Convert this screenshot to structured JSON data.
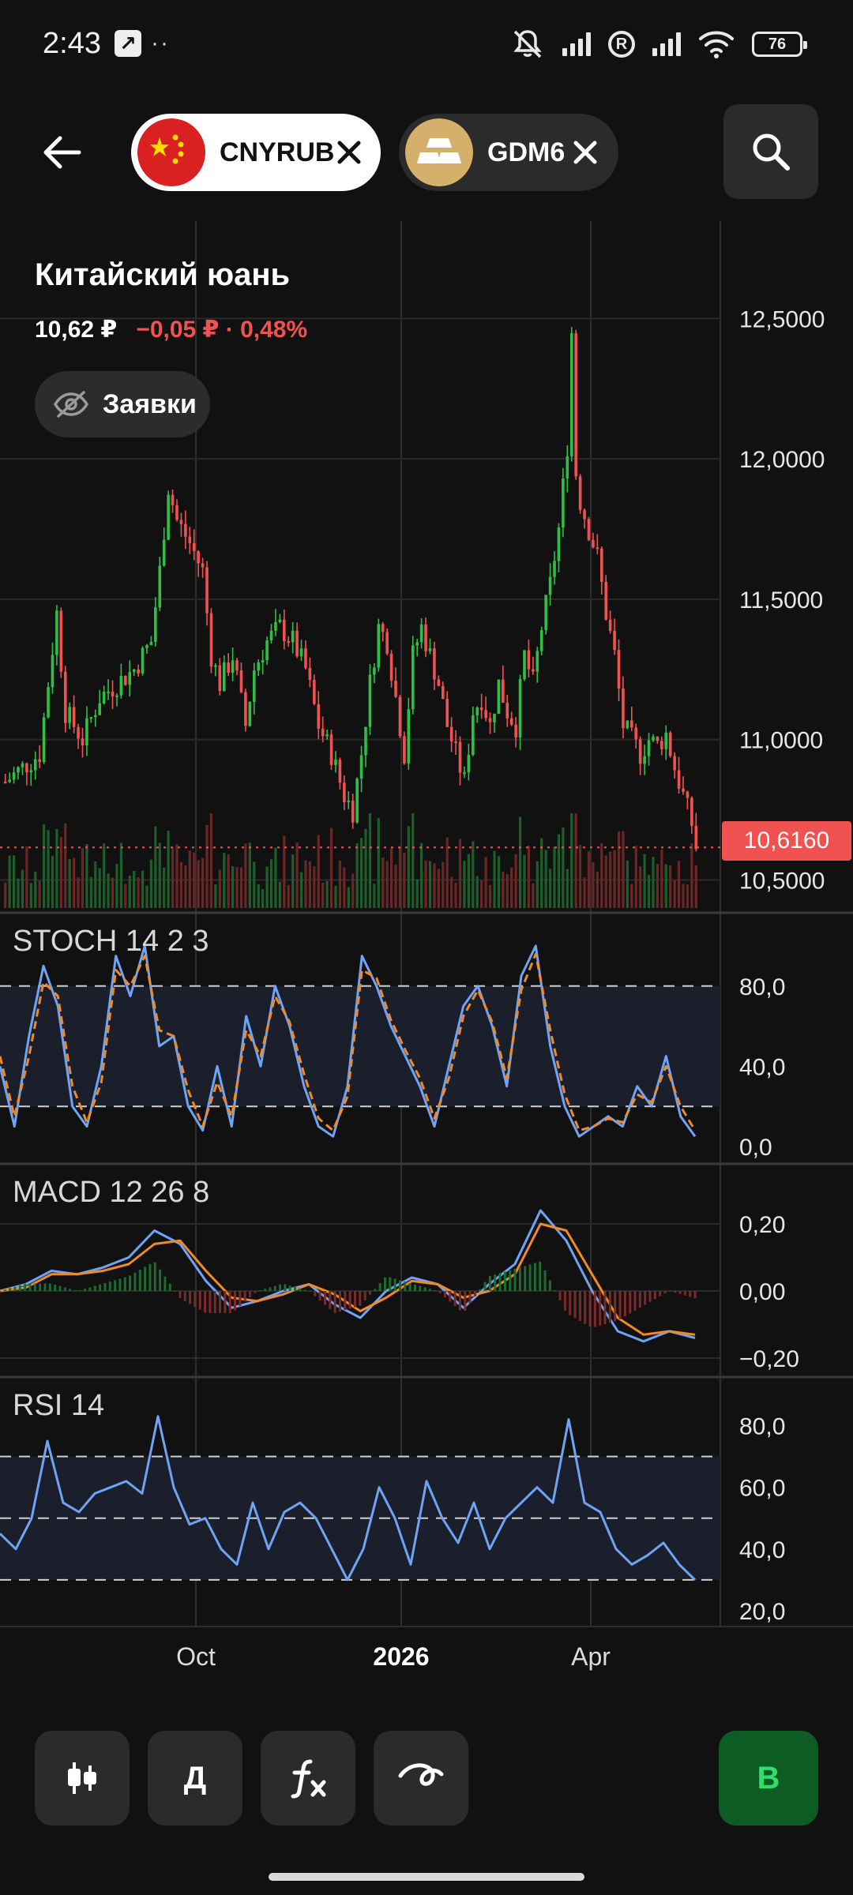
{
  "status_bar": {
    "time": "2:43",
    "battery": "76"
  },
  "header": {
    "chips": [
      {
        "label": "CNYRUB",
        "active": true,
        "logo": "china-flag-icon"
      },
      {
        "label": "GDM6",
        "active": false,
        "logo": "gold-bars-icon"
      }
    ]
  },
  "instrument": {
    "name": "Китайский юань",
    "price": "10,62 ₽",
    "change": "−0,05 ₽ · 0,48%",
    "orders_label": "Заявки"
  },
  "colors": {
    "up": "#2fbf45",
    "down": "#f05252",
    "blue_line": "#6fa3f5",
    "orange_line": "#f08a24",
    "panel_band": "#1a1f2b"
  },
  "chart_data": [
    {
      "type": "candlestick",
      "title": "",
      "y_ticks": [
        "12,5000",
        "12,0000",
        "11,5000",
        "11,0000",
        "10,5000"
      ],
      "ylim": [
        10.4,
        12.65
      ],
      "last_price_label": "10,6160",
      "last_price": 10.616,
      "x_labels": [
        "Oct",
        "2026",
        "Apr"
      ],
      "close_path": [
        [
          0,
          10.85
        ],
        [
          4,
          10.9
        ],
        [
          8,
          10.95
        ],
        [
          10,
          11.2
        ],
        [
          12,
          11.45
        ],
        [
          14,
          11.1
        ],
        [
          18,
          11.0
        ],
        [
          22,
          11.15
        ],
        [
          26,
          11.2
        ],
        [
          30,
          11.25
        ],
        [
          34,
          11.35
        ],
        [
          36,
          11.6
        ],
        [
          38,
          11.9
        ],
        [
          40,
          11.78
        ],
        [
          43,
          11.7
        ],
        [
          46,
          11.6
        ],
        [
          48,
          11.3
        ],
        [
          50,
          11.2
        ],
        [
          53,
          11.3
        ],
        [
          56,
          11.05
        ],
        [
          58,
          11.25
        ],
        [
          61,
          11.35
        ],
        [
          64,
          11.4
        ],
        [
          67,
          11.35
        ],
        [
          70,
          11.25
        ],
        [
          73,
          11.05
        ],
        [
          76,
          10.95
        ],
        [
          79,
          10.8
        ],
        [
          81,
          10.75
        ],
        [
          83,
          10.95
        ],
        [
          85,
          11.2
        ],
        [
          87,
          11.4
        ],
        [
          89,
          11.35
        ],
        [
          91,
          11.15
        ],
        [
          93,
          10.95
        ],
        [
          95,
          11.3
        ],
        [
          97,
          11.4
        ],
        [
          99,
          11.3
        ],
        [
          101,
          11.2
        ],
        [
          103,
          11.05
        ],
        [
          105,
          10.95
        ],
        [
          107,
          10.85
        ],
        [
          109,
          11.1
        ],
        [
          111,
          11.15
        ],
        [
          113,
          11.05
        ],
        [
          115,
          11.2
        ],
        [
          117,
          11.1
        ],
        [
          119,
          11.05
        ],
        [
          121,
          11.3
        ],
        [
          123,
          11.2
        ],
        [
          125,
          11.4
        ],
        [
          127,
          11.55
        ],
        [
          129,
          11.75
        ],
        [
          131,
          12.05
        ],
        [
          132,
          12.45
        ],
        [
          133,
          11.95
        ],
        [
          134,
          11.85
        ],
        [
          136,
          11.75
        ],
        [
          138,
          11.65
        ],
        [
          140,
          11.45
        ],
        [
          142,
          11.3
        ],
        [
          144,
          11.05
        ],
        [
          146,
          11.0
        ],
        [
          148,
          10.95
        ],
        [
          150,
          11.0
        ],
        [
          152,
          10.98
        ],
        [
          154,
          11.02
        ],
        [
          156,
          10.9
        ],
        [
          158,
          10.8
        ],
        [
          160,
          10.7
        ],
        [
          161,
          10.616
        ]
      ]
    },
    {
      "type": "line",
      "title": "STOCH 14 2 3",
      "y_ticks": [
        "80,0",
        "40,0",
        "0,0"
      ],
      "ylim": [
        0,
        100
      ],
      "guide_levels": [
        80,
        20
      ],
      "series": [
        {
          "color": "blue",
          "values": [
            40,
            10,
            55,
            90,
            70,
            20,
            10,
            40,
            95,
            75,
            100,
            50,
            55,
            20,
            8,
            40,
            10,
            65,
            40,
            80,
            60,
            30,
            10,
            5,
            30,
            95,
            80,
            60,
            45,
            30,
            10,
            40,
            70,
            80,
            60,
            30,
            85,
            100,
            50,
            20,
            5,
            10,
            15,
            10,
            30,
            20,
            45,
            15,
            5
          ]
        },
        {
          "color": "orange",
          "values": [
            45,
            15,
            45,
            82,
            75,
            30,
            12,
            32,
            88,
            80,
            95,
            58,
            55,
            28,
            10,
            32,
            15,
            58,
            45,
            75,
            62,
            36,
            14,
            8,
            25,
            88,
            84,
            63,
            48,
            34,
            14,
            34,
            65,
            78,
            62,
            34,
            78,
            96,
            58,
            26,
            8,
            10,
            14,
            12,
            26,
            22,
            40,
            20,
            8
          ]
        }
      ]
    },
    {
      "type": "line",
      "title": "MACD 12 26 8",
      "y_ticks": [
        "0,20",
        "0,00",
        "−0,20"
      ],
      "ylim": [
        -0.2,
        0.28
      ],
      "series": [
        {
          "color": "blue",
          "values": [
            0,
            0.02,
            0.06,
            0.05,
            0.07,
            0.1,
            0.18,
            0.14,
            0.03,
            -0.05,
            -0.03,
            0.0,
            0.02,
            -0.04,
            -0.08,
            0.0,
            0.04,
            0.02,
            -0.05,
            0.02,
            0.08,
            0.24,
            0.15,
            0.0,
            -0.12,
            -0.15,
            -0.12,
            -0.14
          ]
        },
        {
          "color": "orange",
          "values": [
            0,
            0.01,
            0.05,
            0.05,
            0.06,
            0.08,
            0.14,
            0.15,
            0.06,
            -0.02,
            -0.03,
            -0.01,
            0.02,
            -0.01,
            -0.06,
            -0.02,
            0.03,
            0.02,
            -0.02,
            0.0,
            0.05,
            0.2,
            0.18,
            0.05,
            -0.08,
            -0.13,
            -0.12,
            -0.13
          ]
        }
      ]
    },
    {
      "type": "line",
      "title": "RSI 14",
      "y_ticks": [
        "80,0",
        "60,0",
        "40,0",
        "20,0"
      ],
      "ylim": [
        20,
        85
      ],
      "guide_levels": [
        70,
        50,
        30
      ],
      "series": [
        {
          "color": "blue",
          "values": [
            45,
            40,
            50,
            75,
            55,
            52,
            58,
            60,
            62,
            58,
            83,
            60,
            48,
            50,
            40,
            35,
            55,
            40,
            52,
            55,
            50,
            40,
            30,
            40,
            60,
            50,
            35,
            62,
            50,
            42,
            55,
            40,
            50,
            55,
            60,
            55,
            82,
            55,
            52,
            40,
            35,
            38,
            42,
            35,
            30
          ]
        }
      ]
    }
  ],
  "toolbar": {
    "candles_icon": "candles-icon",
    "period_label": "Д",
    "indicators_icon": "function-icon",
    "drawing_icon": "drawing-curve-icon",
    "buy_label": "В"
  }
}
